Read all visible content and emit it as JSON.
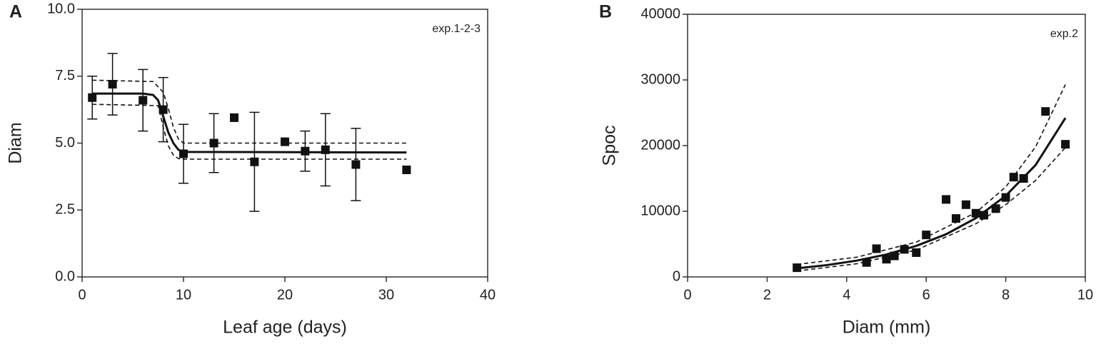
{
  "chart_data": [
    {
      "type": "scatter",
      "panel_label": "A",
      "annotation": "exp.1-2-3",
      "x_label": "Leaf age (days)",
      "y_label": "Diam",
      "color": "#111111",
      "xlim": [
        0,
        40
      ],
      "xticks": [
        0,
        10,
        20,
        30,
        40
      ],
      "ylim": [
        0,
        10
      ],
      "yticks": [
        {
          "value": 0,
          "label": "0.0"
        },
        {
          "value": 2.5,
          "label": "2.5"
        },
        {
          "value": 5,
          "label": "5.0"
        },
        {
          "value": 7.5,
          "label": "7.5"
        },
        {
          "value": 10,
          "label": "10.0"
        }
      ],
      "points": {
        "x": [
          1,
          3,
          6,
          8,
          10,
          13,
          15,
          17,
          20,
          22,
          24,
          27,
          32
        ],
        "y": [
          6.7,
          7.2,
          6.6,
          6.25,
          4.6,
          5.0,
          5.95,
          4.3,
          5.05,
          4.7,
          4.75,
          4.2,
          4.0
        ],
        "error": [
          0.8,
          1.15,
          1.15,
          1.2,
          1.1,
          1.1,
          null,
          1.85,
          null,
          0.75,
          1.35,
          1.35,
          null
        ]
      },
      "fits": [
        {
          "dashed": false,
          "x": [
            1,
            6,
            7,
            7.5,
            8,
            8.5,
            9,
            9.5,
            10,
            32
          ],
          "values": [
            6.85,
            6.85,
            6.8,
            6.6,
            6.0,
            5.4,
            5.0,
            4.75,
            4.67,
            4.65
          ]
        },
        {
          "dashed": true,
          "x": [
            1,
            7,
            8,
            8.5,
            9,
            9.5,
            10,
            32
          ],
          "values": [
            7.35,
            7.3,
            6.9,
            6.3,
            5.6,
            5.15,
            5.0,
            5.0
          ]
        },
        {
          "dashed": true,
          "x": [
            1,
            7.5,
            8,
            8.5,
            9,
            9.5,
            10,
            32
          ],
          "values": [
            6.45,
            6.4,
            5.6,
            4.9,
            4.55,
            4.42,
            4.4,
            4.4
          ]
        }
      ]
    },
    {
      "type": "scatter",
      "panel_label": "B",
      "annotation": "exp.2",
      "x_label": "Diam (mm)",
      "y_label": "Spoc",
      "color": "#111111",
      "xlim": [
        0,
        10
      ],
      "xticks": [
        0,
        2,
        4,
        6,
        8,
        10
      ],
      "ylim": [
        0,
        40000
      ],
      "yticks": [
        0,
        10000,
        20000,
        30000,
        40000
      ],
      "points": {
        "x": [
          2.75,
          4.5,
          4.75,
          5.0,
          5.2,
          5.45,
          5.75,
          6.0,
          6.5,
          6.75,
          7.0,
          7.25,
          7.45,
          7.75,
          8.0,
          8.2,
          8.45,
          9.0,
          9.5
        ],
        "y": [
          1400,
          2200,
          4300,
          2700,
          3200,
          4200,
          3700,
          6400,
          11800,
          8900,
          11000,
          9700,
          9400,
          10400,
          12100,
          15200,
          15000,
          25200,
          20200
        ],
        "error": [
          null,
          null,
          null,
          null,
          null,
          null,
          null,
          null,
          null,
          null,
          null,
          null,
          null,
          null,
          null,
          null,
          null,
          null,
          null
        ]
      },
      "fits": [
        {
          "dashed": false,
          "x": [
            2.75,
            3.5,
            4.25,
            5,
            5.75,
            6.5,
            7.25,
            8,
            8.75,
            9.5
          ],
          "values": [
            1300,
            1800,
            2480,
            3420,
            4720,
            6500,
            8960,
            12360,
            17030,
            24200
          ]
        },
        {
          "dashed": true,
          "x": [
            2.75,
            4.25,
            5.75,
            7.25,
            8,
            8.75,
            9.5
          ],
          "values": [
            1900,
            3000,
            5300,
            9800,
            13700,
            19800,
            29300
          ]
        },
        {
          "dashed": true,
          "x": [
            2.75,
            4.25,
            5.75,
            7.25,
            8,
            8.75,
            9.5
          ],
          "values": [
            900,
            2000,
            4100,
            8100,
            11000,
            14700,
            19700
          ]
        }
      ]
    }
  ]
}
